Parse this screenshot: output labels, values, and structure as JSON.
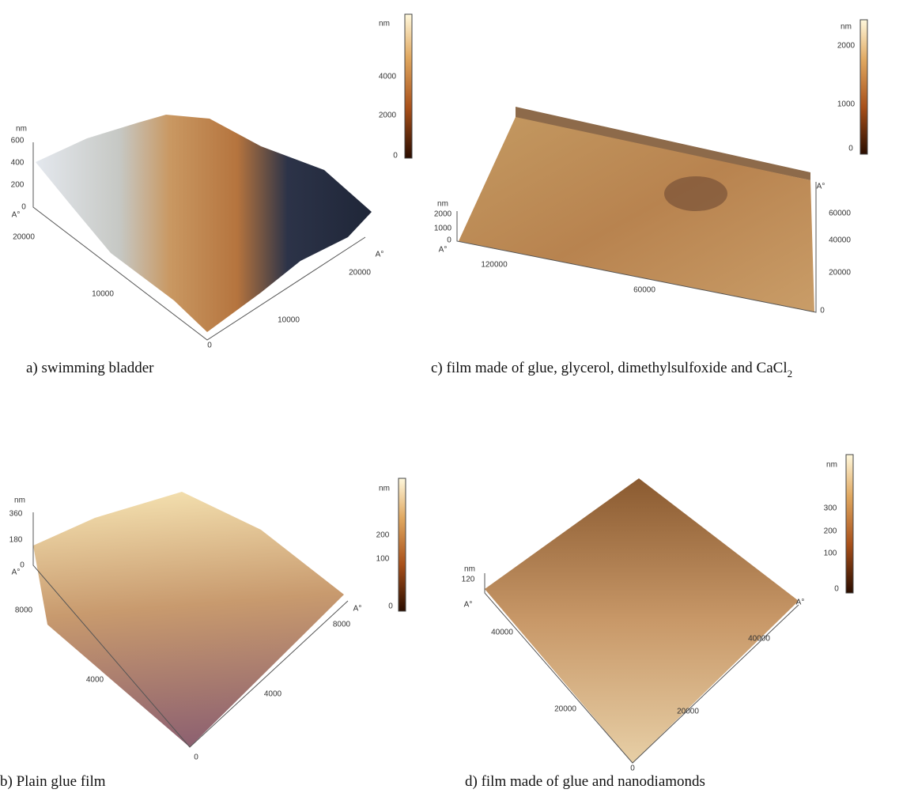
{
  "panels": [
    {
      "caption": "a) swimming bladder",
      "colorbar_labels": [
        "nm",
        "4000",
        "2000",
        "0"
      ],
      "z_labels": [
        "nm",
        "600",
        "400",
        "200",
        "0"
      ],
      "axis_letters": [
        "A°",
        "A°"
      ],
      "left_axis_labels": [
        "20000",
        "10000"
      ],
      "right_axis_labels": [
        "20000",
        "10000"
      ],
      "origin": "0"
    },
    {
      "caption": "c) film made of glue, glycerol, dimethylsulfoxide and CaCl",
      "caption_sub": "2",
      "colorbar_labels": [
        "nm",
        "2000",
        "1000",
        "0"
      ],
      "z_labels": [
        "nm",
        "2000",
        "1000",
        "0"
      ],
      "axis_letters": [
        "A°",
        "A°"
      ],
      "left_axis_labels": [
        "120000",
        "60000"
      ],
      "right_axis_labels": [
        "60000",
        "40000",
        "20000"
      ],
      "origin": "0"
    },
    {
      "caption": "b) Plain glue film",
      "colorbar_labels": [
        "nm",
        "200",
        "100",
        "0"
      ],
      "z_labels": [
        "nm",
        "360",
        "180",
        "0"
      ],
      "axis_letters": [
        "A°",
        "A°"
      ],
      "left_axis_labels": [
        "8000",
        "4000"
      ],
      "right_axis_labels": [
        "8000",
        "4000"
      ],
      "origin": "0"
    },
    {
      "caption": "d) film made of glue and nanodiamonds",
      "colorbar_labels": [
        "nm",
        "300",
        "200",
        "100",
        "0"
      ],
      "z_labels": [
        "nm",
        "120"
      ],
      "axis_letters": [
        "A°",
        "A°"
      ],
      "left_axis_labels": [
        "40000",
        "20000"
      ],
      "right_axis_labels": [
        "40000",
        "20000"
      ],
      "origin": "0"
    }
  ]
}
